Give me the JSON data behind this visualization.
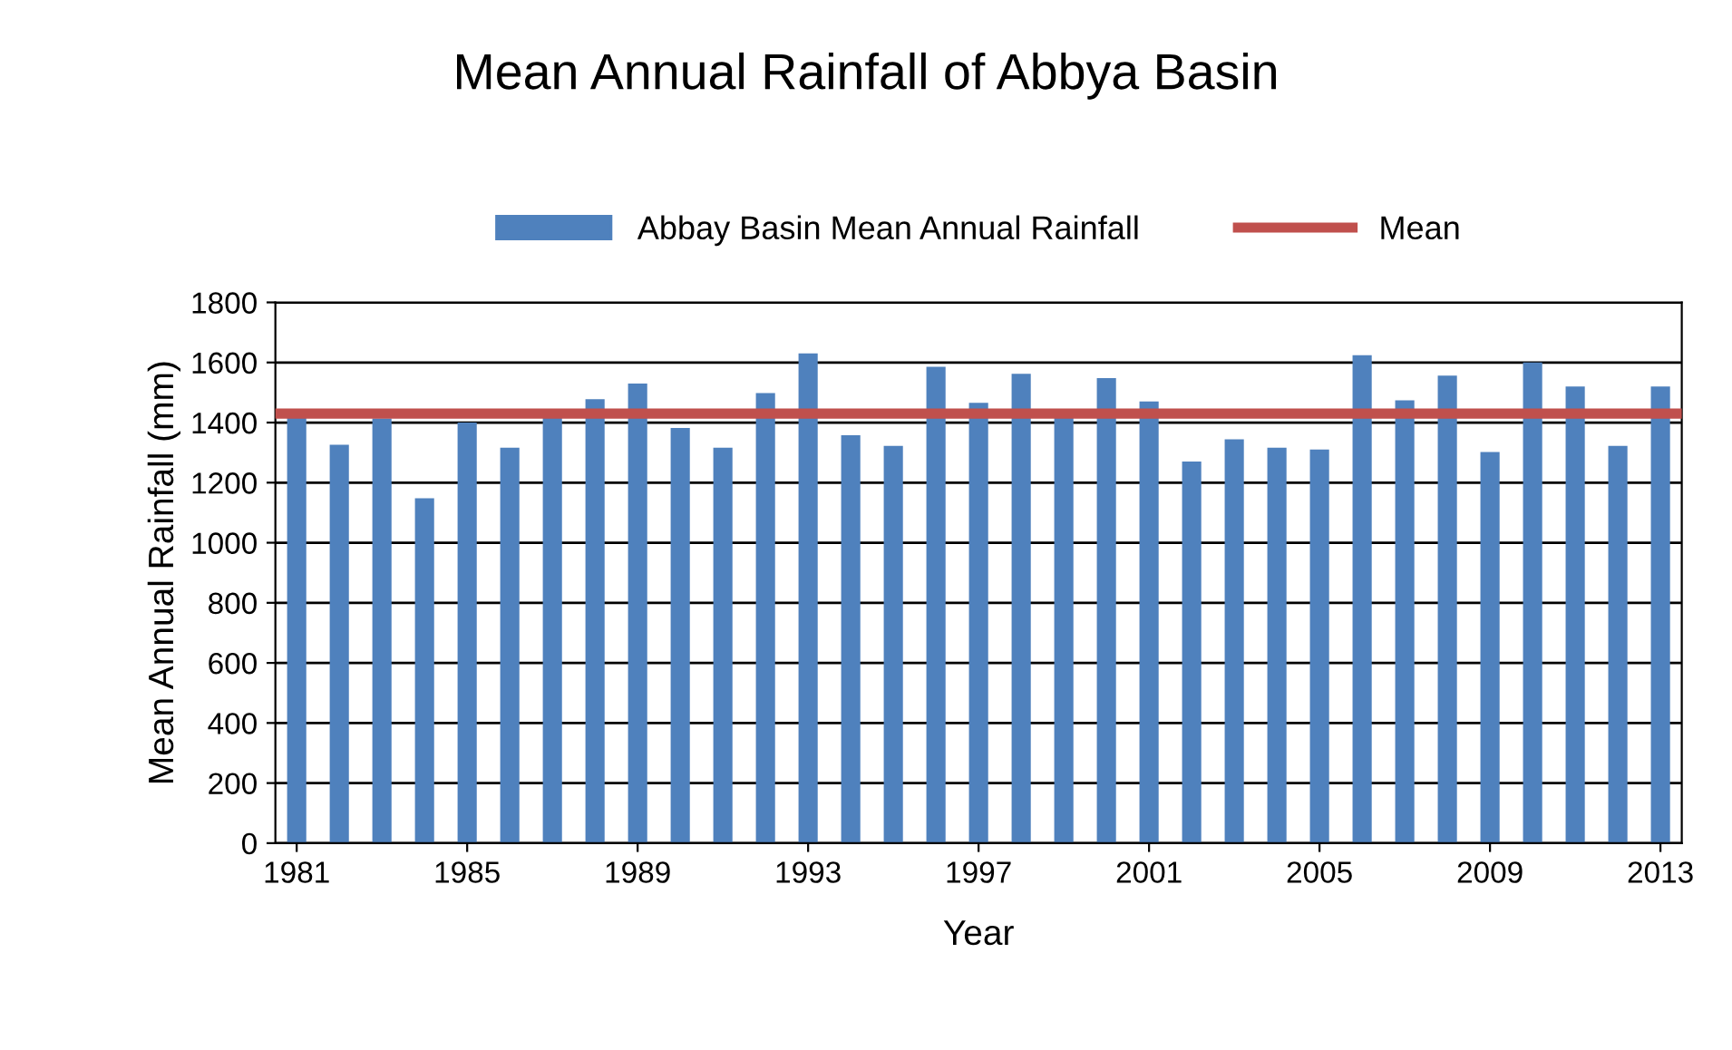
{
  "chart_data": {
    "type": "bar",
    "title": "Mean Annual Rainfall of Abbya Basin",
    "xlabel": "Year",
    "ylabel": "Mean Annual Rainfall (mm)",
    "x": [
      1981,
      1982,
      1983,
      1984,
      1985,
      1986,
      1987,
      1988,
      1989,
      1990,
      1991,
      1992,
      1993,
      1994,
      1995,
      1996,
      1997,
      1998,
      1999,
      2000,
      2001,
      2002,
      2003,
      2004,
      2005,
      2006,
      2007,
      2008,
      2009,
      2010,
      2011,
      2012,
      2013
    ],
    "series": [
      {
        "name": "Abbay Basin Mean Annual Rainfall",
        "color": "#4f81bd",
        "values": [
          1430,
          1326,
          1414,
          1148,
          1400,
          1316,
          1420,
          1478,
          1530,
          1382,
          1316,
          1498,
          1630,
          1358,
          1322,
          1586,
          1466,
          1562,
          1420,
          1548,
          1470,
          1270,
          1344,
          1316,
          1310,
          1624,
          1474,
          1556,
          1302,
          1600,
          1520,
          1322,
          1520
        ]
      }
    ],
    "ref_lines": [
      {
        "axis": "y",
        "value": 1430,
        "label": "Mean",
        "color": "#c0504d"
      }
    ],
    "xlim": [
      1980.5,
      2013.5
    ],
    "xticks": [
      1981,
      1985,
      1989,
      1993,
      1997,
      2001,
      2005,
      2009,
      2013
    ],
    "ylim": [
      0,
      1800
    ],
    "yticks": [
      0,
      200,
      400,
      600,
      800,
      1000,
      1200,
      1400,
      1600,
      1800
    ],
    "grid": "y",
    "legend": "top"
  }
}
